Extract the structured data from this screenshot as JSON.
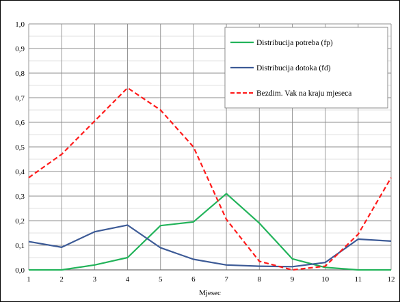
{
  "chart_data": {
    "type": "line",
    "xlabel": "Mjesec",
    "ylabel": "",
    "x": [
      1,
      2,
      3,
      4,
      5,
      6,
      7,
      8,
      9,
      10,
      11,
      12
    ],
    "xlim": [
      1,
      12
    ],
    "ylim": [
      0,
      1
    ],
    "y_tick_labels": [
      "0,0",
      "0,1",
      "0,2",
      "0,3",
      "0,4",
      "0,5",
      "0,6",
      "0,7",
      "0,8",
      "0,9",
      "1,0"
    ],
    "x_tick_labels": [
      "1",
      "2",
      "3",
      "4",
      "5",
      "6",
      "7",
      "8",
      "9",
      "10",
      "11",
      "12"
    ],
    "grid": true,
    "legend_position": "top-right",
    "series": [
      {
        "name": "Distribucija potreba (fp)",
        "color": "#22b35a",
        "dash": "solid",
        "values": [
          0.0,
          0.0,
          0.02,
          0.05,
          0.18,
          0.195,
          0.31,
          0.19,
          0.045,
          0.01,
          0.0,
          0.0
        ]
      },
      {
        "name": "Distribucija dotoka (fd)",
        "color": "#3c5a96",
        "dash": "solid",
        "values": [
          0.115,
          0.092,
          0.155,
          0.182,
          0.09,
          0.043,
          0.02,
          0.015,
          0.013,
          0.03,
          0.125,
          0.117
        ]
      },
      {
        "name": "Bezdim. Vak na kraju mjeseca",
        "color": "#ff1a1a",
        "dash": "dashed",
        "values": [
          0.375,
          0.47,
          0.605,
          0.74,
          0.65,
          0.5,
          0.205,
          0.035,
          0.0,
          0.015,
          0.145,
          0.375
        ]
      }
    ]
  }
}
